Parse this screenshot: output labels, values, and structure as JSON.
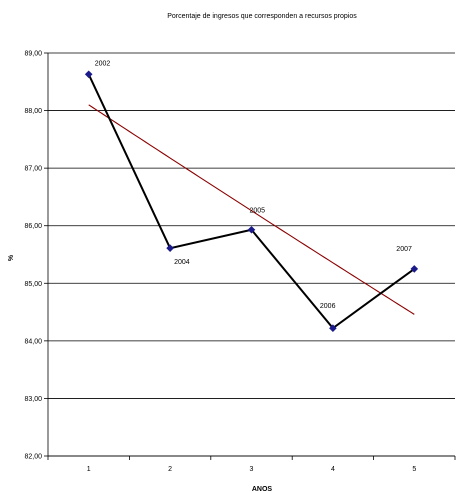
{
  "chart_data": {
    "type": "line",
    "title": "Porcentaje de ingresos que corresponden a recursos propios",
    "xlabel": "ANOS",
    "ylabel": "%",
    "x": [
      1,
      2,
      3,
      4,
      5
    ],
    "xlim": [
      0.5,
      5.5
    ],
    "ylim": [
      82,
      89
    ],
    "yticks": [
      "82,00",
      "83,00",
      "84,00",
      "85,00",
      "86,00",
      "87,00",
      "88,00",
      "89,00"
    ],
    "xticks": [
      "1",
      "2",
      "3",
      "4",
      "5"
    ],
    "grid": "horizontal",
    "series": [
      {
        "values": [
          88.63,
          85.61,
          85.93,
          84.22,
          85.25
        ],
        "point_labels": [
          "2002",
          "2004",
          "2005",
          "2006",
          "2007"
        ],
        "color": "#000000",
        "marker_color": "#1a1a8a"
      }
    ],
    "trendline": {
      "type": "exponential",
      "values": [
        88.1,
        86.45,
        85.5,
        84.95,
        84.46
      ],
      "color": "#8b0000"
    }
  }
}
